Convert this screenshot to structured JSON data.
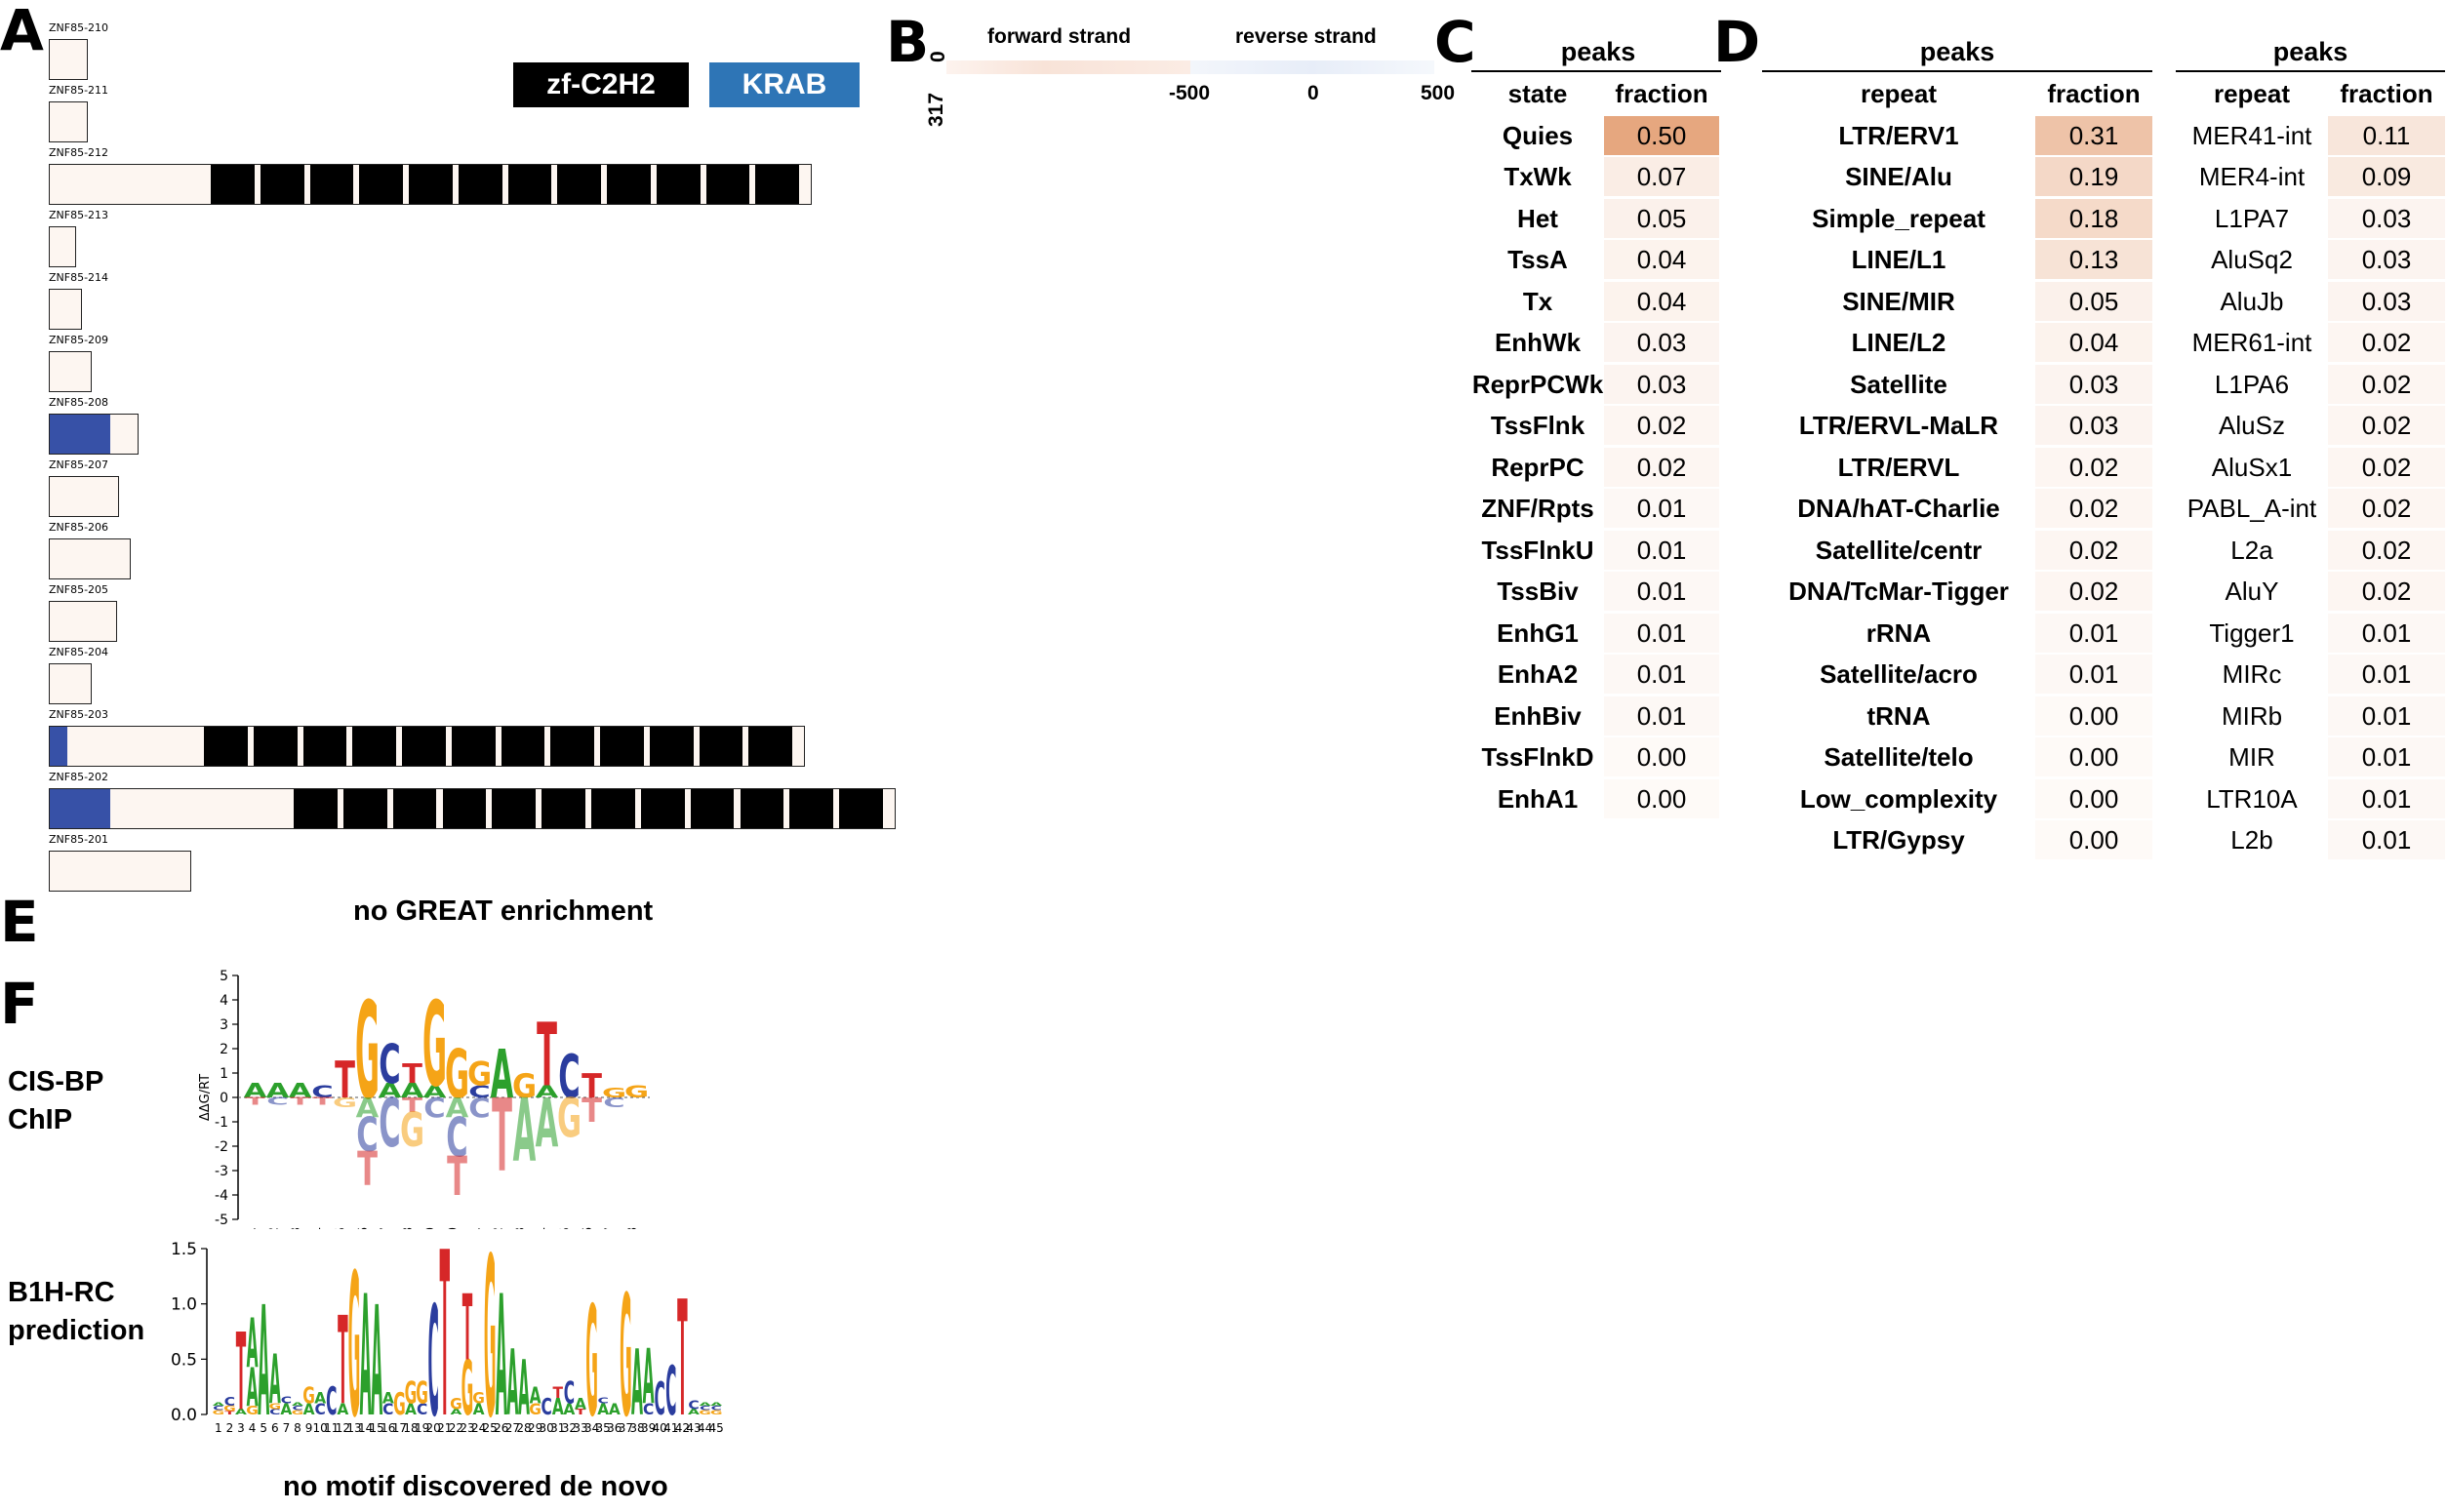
{
  "panels": {
    "a": "A",
    "b": "B",
    "c": "C",
    "d": "D",
    "e": "E",
    "f": "F"
  },
  "panel_a": {
    "legend": [
      {
        "label": "zf-C2H2",
        "color": "#000000"
      },
      {
        "label": "KRAB",
        "color": "#2e75b6"
      }
    ],
    "isoforms": [
      {
        "name": "ZNF85-210",
        "length": 40,
        "krab": null,
        "zf": null
      },
      {
        "name": "ZNF85-211",
        "length": 40,
        "krab": null,
        "zf": null
      },
      {
        "name": "ZNF85-212",
        "length": 782,
        "krab": null,
        "zf": {
          "start": 165,
          "count": 12
        }
      },
      {
        "name": "ZNF85-213",
        "length": 28,
        "krab": null,
        "zf": null
      },
      {
        "name": "ZNF85-214",
        "length": 34,
        "krab": null,
        "zf": null
      },
      {
        "name": "ZNF85-209",
        "length": 44,
        "krab": null,
        "zf": null
      },
      {
        "name": "ZNF85-208",
        "length": 92,
        "krab": [
          0,
          62
        ],
        "zf": null
      },
      {
        "name": "ZNF85-207",
        "length": 72,
        "krab": null,
        "zf": null
      },
      {
        "name": "ZNF85-206",
        "length": 84,
        "krab": null,
        "zf": null
      },
      {
        "name": "ZNF85-205",
        "length": 70,
        "krab": null,
        "zf": null
      },
      {
        "name": "ZNF85-204",
        "length": 44,
        "krab": null,
        "zf": null
      },
      {
        "name": "ZNF85-203",
        "length": 775,
        "krab": [
          0,
          18
        ],
        "zf": {
          "start": 158,
          "count": 12
        }
      },
      {
        "name": "ZNF85-202",
        "length": 868,
        "krab": [
          0,
          62
        ],
        "zf": {
          "start": 250,
          "count": 12
        }
      },
      {
        "name": "ZNF85-201",
        "length": 146,
        "krab": null,
        "zf": null
      }
    ],
    "great_note": "no GREAT enrichment"
  },
  "panel_b": {
    "forward_label": "forward strand",
    "reverse_label": "reverse strand",
    "y_top": "0",
    "y_bottom": "317",
    "ticks": [
      "-500",
      "0",
      "500"
    ]
  },
  "panel_c": {
    "title": "peaks",
    "headers": [
      "state",
      "fraction"
    ],
    "rows": [
      {
        "label": "Quies",
        "value": "0.50",
        "frac": 0.5
      },
      {
        "label": "TxWk",
        "value": "0.07",
        "frac": 0.07
      },
      {
        "label": "Het",
        "value": "0.05",
        "frac": 0.05
      },
      {
        "label": "TssA",
        "value": "0.04",
        "frac": 0.04
      },
      {
        "label": "Tx",
        "value": "0.04",
        "frac": 0.04
      },
      {
        "label": "EnhWk",
        "value": "0.03",
        "frac": 0.03
      },
      {
        "label": "ReprPCWk",
        "value": "0.03",
        "frac": 0.03
      },
      {
        "label": "TssFlnk",
        "value": "0.02",
        "frac": 0.02
      },
      {
        "label": "ReprPC",
        "value": "0.02",
        "frac": 0.02
      },
      {
        "label": "ZNF/Rpts",
        "value": "0.01",
        "frac": 0.01
      },
      {
        "label": "TssFlnkU",
        "value": "0.01",
        "frac": 0.01
      },
      {
        "label": "TssBiv",
        "value": "0.01",
        "frac": 0.01
      },
      {
        "label": "EnhG1",
        "value": "0.01",
        "frac": 0.01
      },
      {
        "label": "EnhA2",
        "value": "0.01",
        "frac": 0.01
      },
      {
        "label": "EnhBiv",
        "value": "0.01",
        "frac": 0.01
      },
      {
        "label": "TssFlnkD",
        "value": "0.00",
        "frac": 0.0
      },
      {
        "label": "EnhA1",
        "value": "0.00",
        "frac": 0.0
      }
    ]
  },
  "panel_d1": {
    "title": "peaks",
    "headers": [
      "repeat",
      "fraction"
    ],
    "rows": [
      {
        "label": "LTR/ERV1",
        "value": "0.31",
        "frac": 0.31
      },
      {
        "label": "SINE/Alu",
        "value": "0.19",
        "frac": 0.19
      },
      {
        "label": "Simple_repeat",
        "value": "0.18",
        "frac": 0.18
      },
      {
        "label": "LINE/L1",
        "value": "0.13",
        "frac": 0.13
      },
      {
        "label": "SINE/MIR",
        "value": "0.05",
        "frac": 0.05
      },
      {
        "label": "LINE/L2",
        "value": "0.04",
        "frac": 0.04
      },
      {
        "label": "Satellite",
        "value": "0.03",
        "frac": 0.03
      },
      {
        "label": "LTR/ERVL-MaLR",
        "value": "0.03",
        "frac": 0.03
      },
      {
        "label": "LTR/ERVL",
        "value": "0.02",
        "frac": 0.02
      },
      {
        "label": "DNA/hAT-Charlie",
        "value": "0.02",
        "frac": 0.02
      },
      {
        "label": "Satellite/centr",
        "value": "0.02",
        "frac": 0.02
      },
      {
        "label": "DNA/TcMar-Tigger",
        "value": "0.02",
        "frac": 0.02
      },
      {
        "label": "rRNA",
        "value": "0.01",
        "frac": 0.01
      },
      {
        "label": "Satellite/acro",
        "value": "0.01",
        "frac": 0.01
      },
      {
        "label": "tRNA",
        "value": "0.00",
        "frac": 0.0
      },
      {
        "label": "Satellite/telo",
        "value": "0.00",
        "frac": 0.0
      },
      {
        "label": "Low_complexity",
        "value": "0.00",
        "frac": 0.0
      },
      {
        "label": "LTR/Gypsy",
        "value": "0.00",
        "frac": 0.0
      }
    ]
  },
  "panel_d2": {
    "title": "peaks",
    "headers": [
      "repeat",
      "fraction"
    ],
    "rows": [
      {
        "label": "MER41-int",
        "value": "0.11",
        "frac": 0.11
      },
      {
        "label": "MER4-int",
        "value": "0.09",
        "frac": 0.09
      },
      {
        "label": "L1PA7",
        "value": "0.03",
        "frac": 0.03
      },
      {
        "label": "AluSq2",
        "value": "0.03",
        "frac": 0.03
      },
      {
        "label": "AluJb",
        "value": "0.03",
        "frac": 0.03
      },
      {
        "label": "MER61-int",
        "value": "0.02",
        "frac": 0.02
      },
      {
        "label": "L1PA6",
        "value": "0.02",
        "frac": 0.02
      },
      {
        "label": "AluSz",
        "value": "0.02",
        "frac": 0.02
      },
      {
        "label": "AluSx1",
        "value": "0.02",
        "frac": 0.02
      },
      {
        "label": "PABL_A-int",
        "value": "0.02",
        "frac": 0.02
      },
      {
        "label": "L2a",
        "value": "0.02",
        "frac": 0.02
      },
      {
        "label": "AluY",
        "value": "0.02",
        "frac": 0.02
      },
      {
        "label": "Tigger1",
        "value": "0.01",
        "frac": 0.01
      },
      {
        "label": "MIRc",
        "value": "0.01",
        "frac": 0.01
      },
      {
        "label": "MIRb",
        "value": "0.01",
        "frac": 0.01
      },
      {
        "label": "MIR",
        "value": "0.01",
        "frac": 0.01
      },
      {
        "label": "LTR10A",
        "value": "0.01",
        "frac": 0.01
      },
      {
        "label": "L2b",
        "value": "0.01",
        "frac": 0.01
      }
    ]
  },
  "panel_f": {
    "label1": [
      "CIS-BP",
      "ChIP"
    ],
    "label2": [
      "B1H-RC",
      "prediction"
    ],
    "logo1_ylabel": "ΔΔG/RT",
    "logo1_yticks": [
      "5",
      "4",
      "3",
      "2",
      "1",
      "0",
      "-1",
      "-2",
      "-3",
      "-4",
      "-5"
    ],
    "logo1_xticks": [
      "1",
      "2",
      "3",
      "4",
      "5",
      "6",
      "7",
      "8",
      "9",
      "0",
      "1",
      "2",
      "3",
      "4",
      "5",
      "6",
      "7",
      "8"
    ],
    "logo2_yticks": [
      "1.5",
      "1.0",
      "0.5",
      "0.0"
    ],
    "logo2_xticks": [
      "1",
      "2",
      "3",
      "4",
      "5",
      "6",
      "7",
      "8",
      "9",
      "10",
      "11",
      "12",
      "13",
      "14",
      "15",
      "16",
      "17",
      "18",
      "19",
      "20",
      "21",
      "22",
      "23",
      "24",
      "25",
      "26",
      "27",
      "28",
      "29",
      "30",
      "31",
      "32",
      "33",
      "34",
      "35",
      "36",
      "37",
      "38",
      "39",
      "40",
      "41",
      "42",
      "43",
      "44",
      "45"
    ],
    "denovo_note": "no motif discovered de novo"
  },
  "colors": {
    "A": "#2ca02c",
    "C": "#2b3d9e",
    "G": "#f5a417",
    "T": "#d62728",
    "krab": "#3751a7",
    "iso_fill": "#fdf6f1",
    "heat_max": "#e6a77f"
  }
}
